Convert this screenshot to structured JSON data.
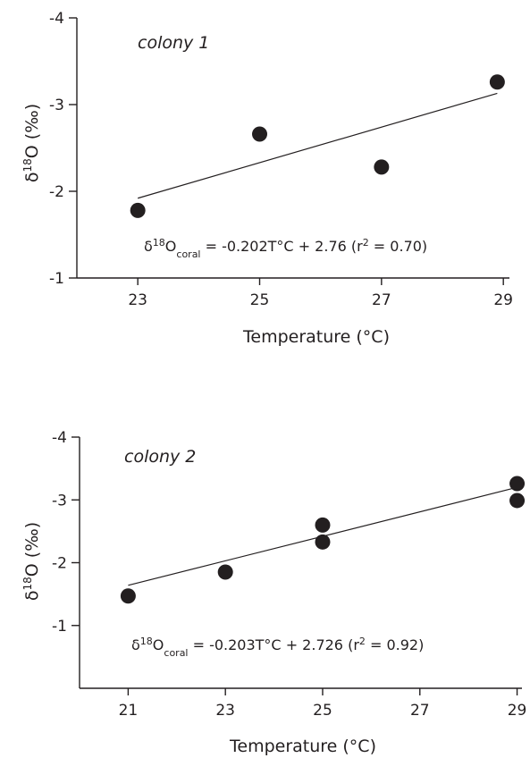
{
  "chart_data": [
    {
      "type": "scatter",
      "title": "colony 1",
      "xlabel": "Temperature (°C)",
      "ylabel": {
        "delta": "δ",
        "sup": "18",
        "rest": "O (‰)"
      },
      "xlim": [
        22.0,
        29.1
      ],
      "ylim": [
        -1,
        -4
      ],
      "y_axis_inverted": true,
      "x_ticks": [
        23,
        25,
        27,
        29
      ],
      "x_tick_labels": [
        "23",
        "25",
        "27",
        "29"
      ],
      "y_ticks": [
        -1,
        -2,
        -3,
        -4
      ],
      "y_tick_labels": [
        "-1",
        "-2",
        "-3",
        "-4"
      ],
      "points": [
        {
          "x": 23.0,
          "y": -1.78
        },
        {
          "x": 25.0,
          "y": -2.66
        },
        {
          "x": 27.0,
          "y": -2.28
        },
        {
          "x": 28.9,
          "y": -3.26
        }
      ],
      "fit_line": {
        "x": [
          23.0,
          28.9
        ],
        "y": [
          -1.92,
          -3.13
        ]
      },
      "equation": {
        "lhs_delta": "δ",
        "lhs_sup": "18",
        "lhs_o": "O",
        "lhs_sub": "coral",
        "rhs_before": " = -0.202T°C + 2.76 (r",
        "rhs_sup": "2",
        "rhs_after": " = 0.70)"
      },
      "grid": false,
      "legend": "none"
    },
    {
      "type": "scatter",
      "title": "colony 2",
      "xlabel": "Temperature (°C)",
      "ylabel": {
        "delta": "δ",
        "sup": "18",
        "rest": "O (‰)"
      },
      "xlim": [
        20.0,
        29.1
      ],
      "ylim": [
        0,
        -4
      ],
      "y_axis_inverted": true,
      "x_ticks": [
        21,
        23,
        25,
        27,
        29
      ],
      "x_tick_labels": [
        "21",
        "23",
        "25",
        "27",
        "29"
      ],
      "y_ticks": [
        -1,
        -2,
        -3,
        -4
      ],
      "y_tick_labels": [
        "-1",
        "-2",
        "-3",
        "-4"
      ],
      "points": [
        {
          "x": 21.0,
          "y": -1.47
        },
        {
          "x": 23.0,
          "y": -1.85
        },
        {
          "x": 25.0,
          "y": -2.6
        },
        {
          "x": 25.0,
          "y": -2.33
        },
        {
          "x": 29.0,
          "y": -3.26
        },
        {
          "x": 29.0,
          "y": -2.99
        }
      ],
      "fit_line": {
        "x": [
          21.0,
          29.0
        ],
        "y": [
          -1.64,
          -3.2
        ]
      },
      "equation": {
        "lhs_delta": "δ",
        "lhs_sup": "18",
        "lhs_o": "O",
        "lhs_sub": "coral",
        "rhs_before": " = -0.203T°C + 2.726 (r",
        "rhs_sup": "2",
        "rhs_after": " = 0.92)"
      },
      "grid": false,
      "legend": "none"
    }
  ]
}
